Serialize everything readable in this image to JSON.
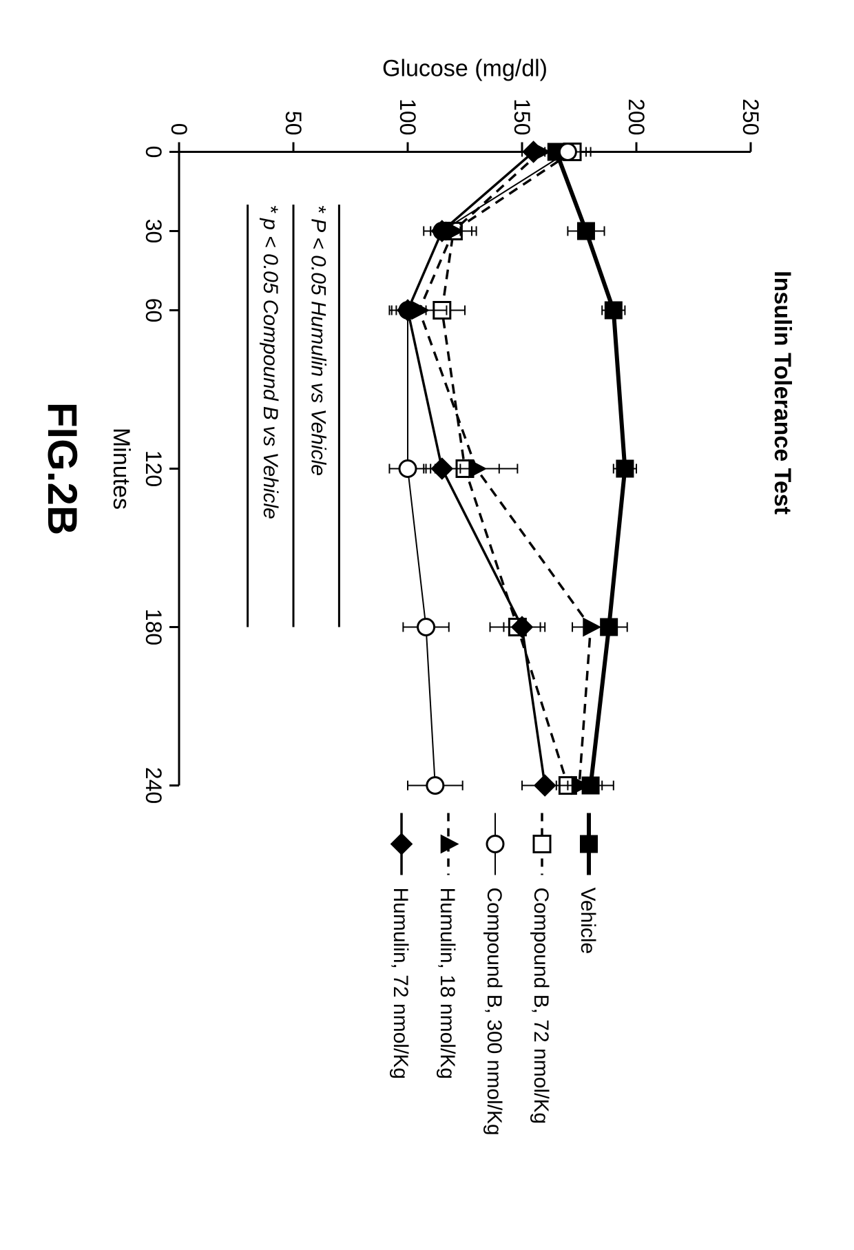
{
  "figure_caption": "FIG.2B",
  "chart": {
    "type": "line",
    "title": "Insulin Tolerance Test",
    "xaxis": {
      "label": "Minutes",
      "min": 0,
      "max": 240,
      "ticks": [
        0,
        30,
        60,
        120,
        180,
        240
      ],
      "tick_length": 14
    },
    "yaxis": {
      "label": "Glucose (mg/dl)",
      "min": 0,
      "max": 250,
      "ticks": [
        0,
        50,
        100,
        150,
        200,
        250
      ],
      "tick_length": 14
    },
    "background_color": "#ffffff",
    "axis_color": "#000000",
    "line_width_thick": 6,
    "line_width_med": 3.5,
    "line_width_thin": 2,
    "marker_size": 12,
    "title_fontsize": 34,
    "label_fontsize": 34,
    "tick_fontsize": 32,
    "legend_fontsize": 30,
    "note_fontsize": 30,
    "series": [
      {
        "name": "Vehicle",
        "marker": "square-filled",
        "line_style": "solid",
        "line_width": 6,
        "color": "#000000",
        "x": [
          0,
          30,
          60,
          120,
          180,
          240
        ],
        "y": [
          165,
          178,
          190,
          195,
          188,
          180
        ],
        "err": [
          10,
          8,
          5,
          5,
          8,
          10
        ]
      },
      {
        "name": "Compound B, 72 nmol/Kg",
        "marker": "square-open",
        "line_style": "dashed",
        "line_width": 3.5,
        "color": "#000000",
        "x": [
          0,
          30,
          60,
          120,
          180,
          240
        ],
        "y": [
          172,
          120,
          115,
          125,
          148,
          170
        ],
        "err": [
          8,
          10,
          10,
          15,
          12,
          10
        ]
      },
      {
        "name": "Compound B, 300 nmol/Kg",
        "marker": "circle-open",
        "line_style": "solid",
        "line_width": 2,
        "color": "#000000",
        "x": [
          0,
          30,
          60,
          120,
          180,
          240
        ],
        "y": [
          170,
          115,
          100,
          100,
          108,
          112
        ],
        "err": [
          8,
          8,
          5,
          8,
          10,
          12
        ]
      },
      {
        "name": "Humulin, 18 nmol/Kg",
        "marker": "triangle-filled",
        "line_style": "dashed",
        "line_width": 3.5,
        "color": "#000000",
        "x": [
          0,
          30,
          60,
          120,
          180,
          240
        ],
        "y": [
          158,
          120,
          105,
          130,
          180,
          175
        ],
        "err": [
          5,
          8,
          12,
          18,
          8,
          10
        ]
      },
      {
        "name": "Humulin, 72 nmol/Kg",
        "marker": "diamond-filled",
        "line_style": "solid",
        "line_width": 3.5,
        "color": "#000000",
        "x": [
          0,
          30,
          60,
          120,
          180,
          240
        ],
        "y": [
          155,
          115,
          100,
          115,
          150,
          160
        ],
        "err": [
          5,
          5,
          8,
          8,
          8,
          10
        ]
      }
    ],
    "legend": {
      "position": "right",
      "items": [
        {
          "series_index": 0,
          "label": "Vehicle"
        },
        {
          "series_index": 1,
          "label": "Compound B, 72 nmol/Kg"
        },
        {
          "series_index": 2,
          "label": "Compound B, 300 nmol/Kg"
        },
        {
          "series_index": 3,
          "label": "Humulin, 18 nmol/Kg"
        },
        {
          "series_index": 4,
          "label": "Humulin, 72 nmol/Kg"
        }
      ]
    },
    "notes": [
      "* P < 0.05 Humulin vs Vehicle",
      "* p < 0.05 Compound B vs Vehicle"
    ]
  }
}
